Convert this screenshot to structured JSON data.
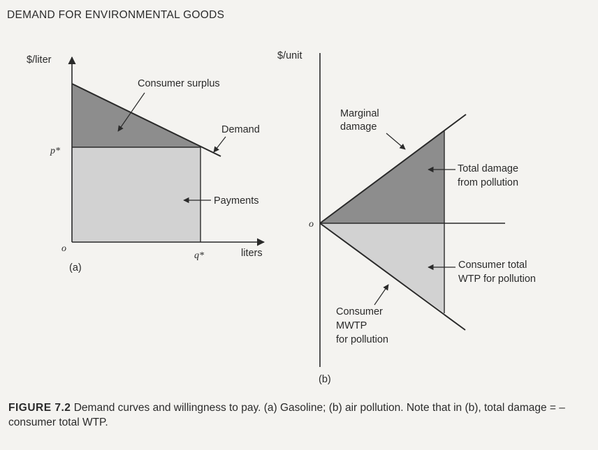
{
  "header": {
    "title": "DEMAND FOR ENVIRONMENTAL GOODS"
  },
  "panel_a": {
    "y_axis_label": "$/liter",
    "x_axis_label": "liters",
    "origin_label": "o",
    "price_label": "p*",
    "quantity_label": "q*",
    "consumer_surplus_label": "Consumer surplus",
    "demand_label": "Demand",
    "payments_label": "Payments",
    "panel_label": "(a)"
  },
  "panel_b": {
    "y_axis_label": "$/unit",
    "origin_label": "o",
    "marginal_damage_line1": "Marginal",
    "marginal_damage_line2": "damage",
    "total_damage_line1": "Total damage",
    "total_damage_line2": "from pollution",
    "total_wtp_line1": "Consumer total",
    "total_wtp_line2": "WTP for pollution",
    "mwtp_line1": "Consumer",
    "mwtp_line2": "MWTP",
    "mwtp_line3": "for pollution",
    "panel_label": "(b)"
  },
  "caption": {
    "figure_number": "FIGURE 7.2",
    "text": " Demand curves and willingness to pay. (a) Gasoline; (b) air pollution. Note that in (b), total damage = –consumer total WTP."
  },
  "colors": {
    "dark_fill": "#8d8d8d",
    "light_fill": "#d2d2d2",
    "line": "#2a2a2a",
    "background": "#f4f3f0"
  }
}
